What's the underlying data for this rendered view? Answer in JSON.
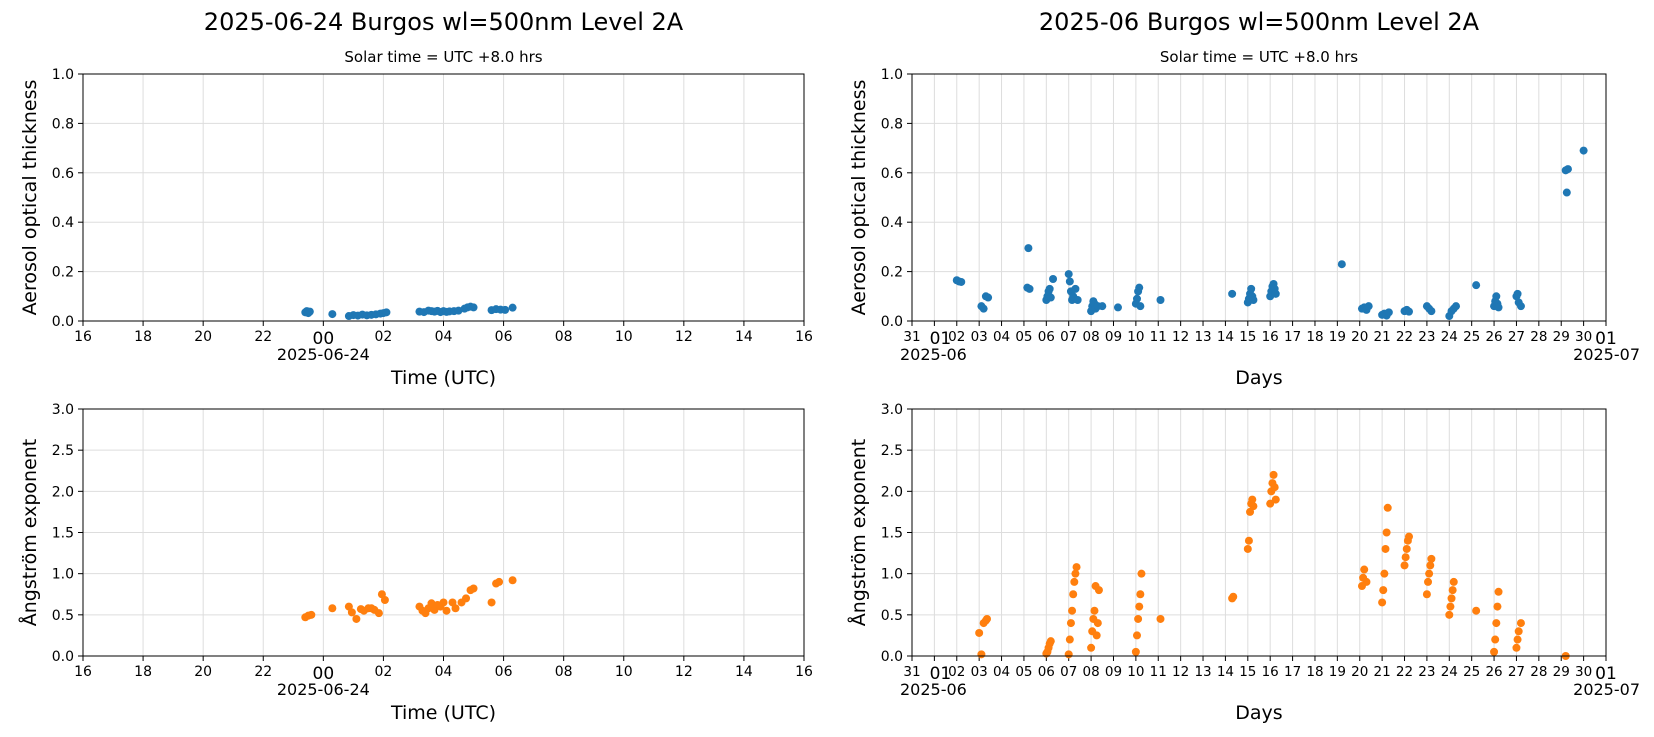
{
  "colors": {
    "aod": "#1f77b4",
    "alpha": "#ff7f0e",
    "grid": "#dddddd"
  },
  "chart_data": [
    {
      "type": "scatter",
      "title": "2025-06-24  Burgos  wl=500nm  Level 2A",
      "subtitle": "Solar time = UTC +8.0 hrs",
      "xlabel": "Time (UTC)",
      "ylabel": "Aerosol optical thickness",
      "xlim": [
        -8,
        16
      ],
      "ylim": [
        0,
        1.0
      ],
      "yticks": [
        "0.0",
        "0.2",
        "0.4",
        "0.6",
        "0.8",
        "1.0"
      ],
      "xticks": [
        "16",
        "18",
        "20",
        "22",
        "00",
        "02",
        "04",
        "06",
        "08",
        "10",
        "12",
        "14",
        "16"
      ],
      "xtick_sub": "2025-06-24",
      "grid": true,
      "color": "aod",
      "x": [
        -0.6,
        -0.55,
        -0.5,
        -0.45,
        0.3,
        0.85,
        1.0,
        1.15,
        1.3,
        1.45,
        1.6,
        1.75,
        1.9,
        2.0,
        2.1,
        3.2,
        3.35,
        3.5,
        3.6,
        3.7,
        3.8,
        3.9,
        4.0,
        4.1,
        4.2,
        4.35,
        4.5,
        4.7,
        4.8,
        4.9,
        5.0,
        5.6,
        5.75,
        5.9,
        6.05,
        6.3
      ],
      "y": [
        0.035,
        0.04,
        0.032,
        0.038,
        0.028,
        0.02,
        0.024,
        0.022,
        0.026,
        0.023,
        0.025,
        0.027,
        0.03,
        0.032,
        0.035,
        0.038,
        0.036,
        0.042,
        0.04,
        0.038,
        0.041,
        0.036,
        0.04,
        0.037,
        0.039,
        0.04,
        0.042,
        0.05,
        0.055,
        0.058,
        0.055,
        0.044,
        0.048,
        0.046,
        0.045,
        0.054
      ]
    },
    {
      "type": "scatter",
      "title": "2025-06  Burgos  wl=500nm  Level 2A",
      "subtitle": "Solar time = UTC +8.0 hrs",
      "xlabel": "Days",
      "ylabel": "Aerosol optical thickness",
      "xlim": [
        0,
        31
      ],
      "ylim": [
        0,
        1.0
      ],
      "yticks": [
        "0.0",
        "0.2",
        "0.4",
        "0.6",
        "0.8",
        "1.0"
      ],
      "xticks": [
        "31",
        "01",
        "02",
        "03",
        "04",
        "05",
        "06",
        "07",
        "08",
        "09",
        "10",
        "11",
        "12",
        "13",
        "14",
        "15",
        "16",
        "17",
        "18",
        "19",
        "20",
        "21",
        "22",
        "23",
        "24",
        "25",
        "26",
        "27",
        "28",
        "29",
        "30",
        "01"
      ],
      "xtick_sub_left": "2025-06",
      "xtick_sub_right": "2025-07",
      "grid": true,
      "color": "aod",
      "x": [
        2.0,
        2.1,
        2.2,
        3.1,
        3.2,
        3.3,
        3.4,
        5.15,
        5.2,
        5.25,
        6.0,
        6.05,
        6.1,
        6.15,
        6.2,
        6.3,
        7.0,
        7.05,
        7.1,
        7.15,
        7.2,
        7.3,
        7.4,
        8.0,
        8.05,
        8.1,
        8.15,
        8.2,
        8.3,
        8.5,
        9.2,
        10.0,
        10.05,
        10.1,
        10.15,
        10.2,
        11.1,
        14.3,
        15.0,
        15.05,
        15.1,
        15.15,
        15.2,
        15.25,
        16.0,
        16.05,
        16.1,
        16.15,
        16.2,
        16.25,
        19.2,
        20.1,
        20.2,
        20.3,
        20.4,
        21.0,
        21.1,
        21.2,
        21.3,
        22.0,
        22.1,
        22.2,
        23.0,
        23.1,
        23.2,
        24.0,
        24.1,
        24.2,
        24.3,
        25.2,
        26.0,
        26.05,
        26.1,
        26.15,
        26.2,
        27.0,
        27.05,
        27.1,
        27.2,
        29.2,
        29.25,
        29.3,
        30.0
      ],
      "y": [
        0.165,
        0.16,
        0.158,
        0.06,
        0.05,
        0.1,
        0.095,
        0.135,
        0.295,
        0.13,
        0.085,
        0.1,
        0.12,
        0.13,
        0.095,
        0.17,
        0.19,
        0.16,
        0.12,
        0.085,
        0.1,
        0.13,
        0.085,
        0.04,
        0.06,
        0.08,
        0.07,
        0.05,
        0.06,
        0.06,
        0.055,
        0.07,
        0.09,
        0.12,
        0.135,
        0.06,
        0.085,
        0.11,
        0.075,
        0.09,
        0.11,
        0.13,
        0.1,
        0.085,
        0.1,
        0.12,
        0.14,
        0.15,
        0.13,
        0.11,
        0.23,
        0.05,
        0.055,
        0.045,
        0.06,
        0.025,
        0.03,
        0.022,
        0.035,
        0.04,
        0.045,
        0.038,
        0.06,
        0.05,
        0.04,
        0.02,
        0.04,
        0.05,
        0.06,
        0.145,
        0.06,
        0.08,
        0.1,
        0.07,
        0.055,
        0.1,
        0.11,
        0.075,
        0.06,
        0.61,
        0.52,
        0.615,
        0.69
      ]
    },
    {
      "type": "scatter",
      "xlabel": "Time (UTC)",
      "ylabel": "Ångström exponent",
      "xlim": [
        -8,
        16
      ],
      "ylim": [
        0,
        3.0
      ],
      "yticks": [
        "0.0",
        "0.5",
        "1.0",
        "1.5",
        "2.0",
        "2.5",
        "3.0"
      ],
      "xticks": [
        "16",
        "18",
        "20",
        "22",
        "00",
        "02",
        "04",
        "06",
        "08",
        "10",
        "12",
        "14",
        "16"
      ],
      "xtick_sub": "2025-06-24",
      "grid": true,
      "color": "alpha",
      "x": [
        -0.6,
        -0.5,
        -0.4,
        0.3,
        0.85,
        0.95,
        1.1,
        1.25,
        1.35,
        1.5,
        1.6,
        1.7,
        1.85,
        1.95,
        2.05,
        3.2,
        3.3,
        3.4,
        3.5,
        3.6,
        3.7,
        3.8,
        3.9,
        4.0,
        4.1,
        4.3,
        4.4,
        4.6,
        4.75,
        4.9,
        5.0,
        5.6,
        5.75,
        5.85,
        6.3
      ],
      "y": [
        0.47,
        0.49,
        0.5,
        0.58,
        0.6,
        0.53,
        0.45,
        0.57,
        0.55,
        0.58,
        0.58,
        0.56,
        0.52,
        0.75,
        0.68,
        0.6,
        0.55,
        0.52,
        0.58,
        0.64,
        0.56,
        0.62,
        0.6,
        0.65,
        0.55,
        0.65,
        0.58,
        0.65,
        0.7,
        0.8,
        0.82,
        0.65,
        0.88,
        0.9,
        0.92
      ]
    },
    {
      "type": "scatter",
      "xlabel": "Days",
      "ylabel": "Ångström exponent",
      "xlim": [
        0,
        31
      ],
      "ylim": [
        0,
        3.0
      ],
      "yticks": [
        "0.0",
        "0.5",
        "1.0",
        "1.5",
        "2.0",
        "2.5",
        "3.0"
      ],
      "xticks": [
        "31",
        "01",
        "02",
        "03",
        "04",
        "05",
        "06",
        "07",
        "08",
        "09",
        "10",
        "11",
        "12",
        "13",
        "14",
        "15",
        "16",
        "17",
        "18",
        "19",
        "20",
        "21",
        "22",
        "23",
        "24",
        "25",
        "26",
        "27",
        "28",
        "29",
        "30",
        "01"
      ],
      "xtick_sub_left": "2025-06",
      "xtick_sub_right": "2025-07",
      "grid": true,
      "color": "alpha",
      "x": [
        3.0,
        3.1,
        3.2,
        3.3,
        3.35,
        6.0,
        6.05,
        6.1,
        6.15,
        6.2,
        7.0,
        7.05,
        7.1,
        7.15,
        7.2,
        7.25,
        7.3,
        7.35,
        8.0,
        8.05,
        8.1,
        8.15,
        8.2,
        8.25,
        8.3,
        8.35,
        10.0,
        10.05,
        10.1,
        10.15,
        10.2,
        10.25,
        11.1,
        14.3,
        14.35,
        15.0,
        15.05,
        15.1,
        15.15,
        15.2,
        15.25,
        16.0,
        16.05,
        16.1,
        16.15,
        16.2,
        16.25,
        20.1,
        20.15,
        20.2,
        20.3,
        21.0,
        21.05,
        21.1,
        21.15,
        21.2,
        21.25,
        22.0,
        22.05,
        22.1,
        22.15,
        22.2,
        23.0,
        23.05,
        23.1,
        23.15,
        23.2,
        24.0,
        24.05,
        24.1,
        24.15,
        24.2,
        25.2,
        26.0,
        26.05,
        26.1,
        26.15,
        26.2,
        27.0,
        27.05,
        27.1,
        27.2,
        29.2
      ],
      "y": [
        0.28,
        0.02,
        0.4,
        0.43,
        0.45,
        0.03,
        0.05,
        0.1,
        0.15,
        0.18,
        0.02,
        0.2,
        0.4,
        0.55,
        0.75,
        0.9,
        1.0,
        1.08,
        0.1,
        0.3,
        0.45,
        0.55,
        0.85,
        0.25,
        0.4,
        0.8,
        0.05,
        0.25,
        0.45,
        0.6,
        0.75,
        1.0,
        0.45,
        0.7,
        0.72,
        1.3,
        1.4,
        1.75,
        1.85,
        1.9,
        1.82,
        1.85,
        2.0,
        2.1,
        2.2,
        2.05,
        1.9,
        0.85,
        0.95,
        1.05,
        0.9,
        0.65,
        0.8,
        1.0,
        1.3,
        1.5,
        1.8,
        1.1,
        1.2,
        1.3,
        1.4,
        1.45,
        0.75,
        0.9,
        1.0,
        1.1,
        1.18,
        0.5,
        0.6,
        0.7,
        0.8,
        0.9,
        0.55,
        0.05,
        0.2,
        0.4,
        0.6,
        0.78,
        0.1,
        0.2,
        0.3,
        0.4,
        0.0
      ]
    }
  ]
}
